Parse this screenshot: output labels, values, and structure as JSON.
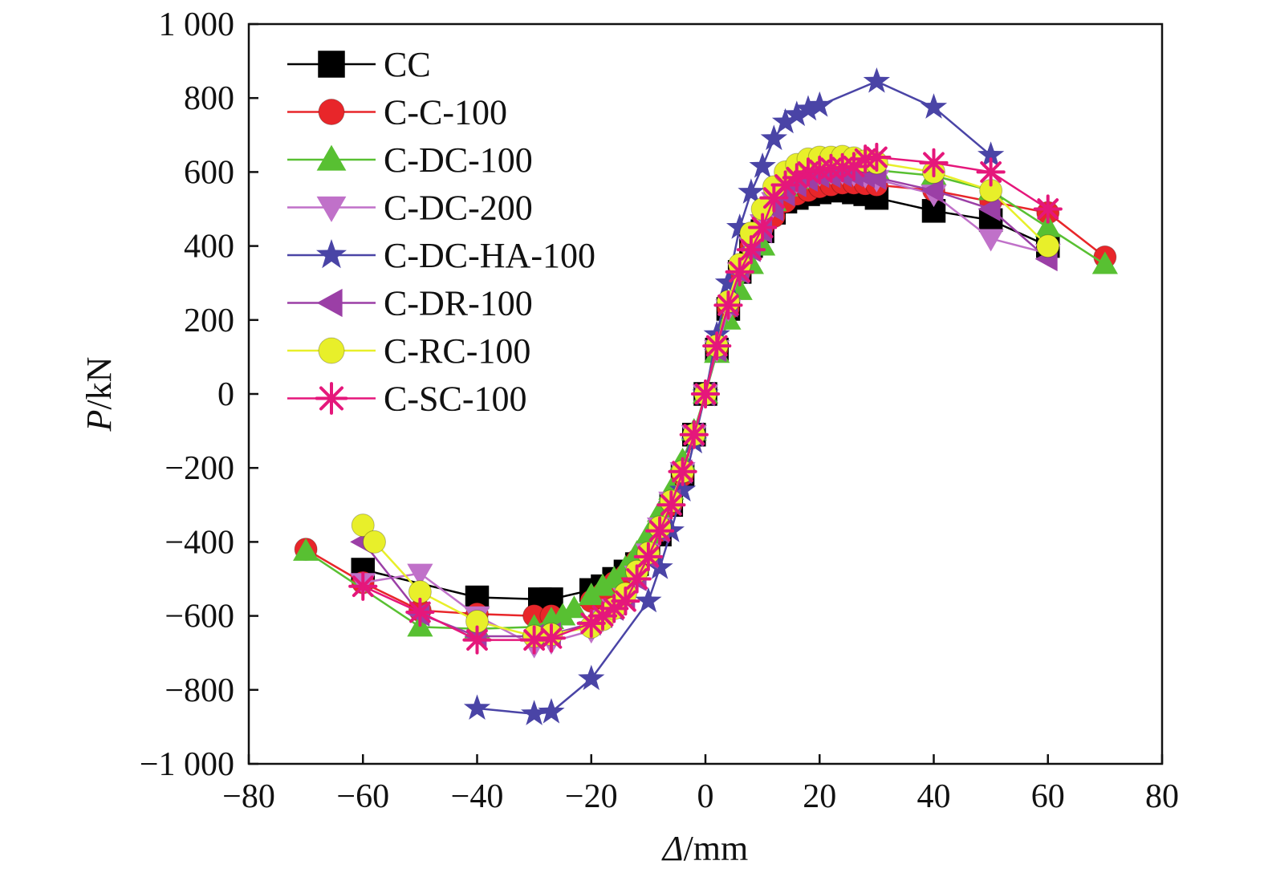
{
  "chart_data": {
    "type": "line",
    "xlabel_symbol": "Δ",
    "xlabel_unit": "/mm",
    "ylabel_symbol": "P",
    "ylabel_unit": "/kN",
    "xlim": [
      -80,
      80
    ],
    "ylim": [
      -1000,
      1000
    ],
    "x_ticks": [
      {
        "value": -80,
        "label": "−80"
      },
      {
        "value": -60,
        "label": "−60"
      },
      {
        "value": -40,
        "label": "−40"
      },
      {
        "value": -20,
        "label": "−20"
      },
      {
        "value": 0,
        "label": "0"
      },
      {
        "value": 20,
        "label": "20"
      },
      {
        "value": 40,
        "label": "40"
      },
      {
        "value": 60,
        "label": "60"
      },
      {
        "value": 80,
        "label": "80"
      }
    ],
    "y_ticks": [
      {
        "value": 1000,
        "label": "1 000"
      },
      {
        "value": 800,
        "label": "800"
      },
      {
        "value": 600,
        "label": "600"
      },
      {
        "value": 400,
        "label": "400"
      },
      {
        "value": 200,
        "label": "200"
      },
      {
        "value": 0,
        "label": "0"
      },
      {
        "value": -200,
        "label": "−200"
      },
      {
        "value": -400,
        "label": "−400"
      },
      {
        "value": -600,
        "label": "−600"
      },
      {
        "value": -800,
        "label": "−800"
      },
      {
        "value": -1000,
        "label": "−1 000"
      }
    ],
    "grid": false,
    "legend_position": "top-left",
    "series": [
      {
        "name": "CC",
        "color": "#000000",
        "marker": "square",
        "points": [
          [
            -60,
            -475
          ],
          [
            -40,
            -550
          ],
          [
            -29,
            -555
          ],
          [
            -27,
            -555
          ],
          [
            -20,
            -530
          ],
          [
            -18,
            -520
          ],
          [
            -16,
            -500
          ],
          [
            -14,
            -480
          ],
          [
            -12,
            -460
          ],
          [
            -10,
            -430
          ],
          [
            -8,
            -380
          ],
          [
            -6,
            -300
          ],
          [
            -4,
            -220
          ],
          [
            -2,
            -110
          ],
          [
            0,
            0
          ],
          [
            2,
            120
          ],
          [
            4,
            230
          ],
          [
            6,
            330
          ],
          [
            8,
            400
          ],
          [
            10,
            440
          ],
          [
            12,
            490
          ],
          [
            14,
            520
          ],
          [
            16,
            530
          ],
          [
            18,
            540
          ],
          [
            20,
            545
          ],
          [
            22,
            550
          ],
          [
            24,
            550
          ],
          [
            26,
            545
          ],
          [
            28,
            540
          ],
          [
            30,
            530
          ],
          [
            40,
            495
          ],
          [
            50,
            470
          ],
          [
            60,
            400
          ]
        ]
      },
      {
        "name": "C-C-100",
        "color": "#e8262a",
        "marker": "circle",
        "points": [
          [
            -70,
            -420
          ],
          [
            -60,
            -510
          ],
          [
            -50,
            -585
          ],
          [
            -40,
            -595
          ],
          [
            -30,
            -600
          ],
          [
            -27,
            -600
          ],
          [
            -20,
            -560
          ],
          [
            -18,
            -540
          ],
          [
            -16,
            -510
          ],
          [
            -14,
            -490
          ],
          [
            -12,
            -450
          ],
          [
            -10,
            -420
          ],
          [
            -8,
            -370
          ],
          [
            -6,
            -300
          ],
          [
            -4,
            -220
          ],
          [
            -2,
            -110
          ],
          [
            0,
            0
          ],
          [
            2,
            120
          ],
          [
            4,
            230
          ],
          [
            6,
            330
          ],
          [
            8,
            400
          ],
          [
            10,
            450
          ],
          [
            12,
            480
          ],
          [
            14,
            520
          ],
          [
            16,
            540
          ],
          [
            18,
            550
          ],
          [
            20,
            560
          ],
          [
            22,
            565
          ],
          [
            24,
            570
          ],
          [
            26,
            570
          ],
          [
            28,
            568
          ],
          [
            30,
            565
          ],
          [
            40,
            550
          ],
          [
            50,
            520
          ],
          [
            60,
            490
          ],
          [
            70,
            370
          ]
        ]
      },
      {
        "name": "C-DC-100",
        "color": "#58c032",
        "marker": "triangle-up",
        "points": [
          [
            -70,
            -425
          ],
          [
            -50,
            -630
          ],
          [
            -40,
            -635
          ],
          [
            -30,
            -630
          ],
          [
            -27,
            -610
          ],
          [
            -25,
            -600
          ],
          [
            -23,
            -580
          ],
          [
            -20,
            -545
          ],
          [
            -18,
            -520
          ],
          [
            -16,
            -500
          ],
          [
            -14,
            -470
          ],
          [
            -12,
            -430
          ],
          [
            -10,
            -380
          ],
          [
            -8,
            -320
          ],
          [
            -6,
            -260
          ],
          [
            -4,
            -180
          ],
          [
            -2,
            -100
          ],
          [
            0,
            0
          ],
          [
            2,
            110
          ],
          [
            4,
            200
          ],
          [
            6,
            280
          ],
          [
            8,
            350
          ],
          [
            10,
            400
          ],
          [
            12,
            520
          ],
          [
            14,
            560
          ],
          [
            16,
            580
          ],
          [
            18,
            590
          ],
          [
            20,
            595
          ],
          [
            22,
            600
          ],
          [
            24,
            605
          ],
          [
            26,
            605
          ],
          [
            28,
            605
          ],
          [
            30,
            605
          ],
          [
            40,
            590
          ],
          [
            50,
            550
          ],
          [
            60,
            450
          ],
          [
            70,
            350
          ]
        ]
      },
      {
        "name": "C-DC-200",
        "color": "#c071c9",
        "marker": "triangle-down",
        "points": [
          [
            -60,
            -510
          ],
          [
            -50,
            -485
          ],
          [
            -40,
            -600
          ],
          [
            -30,
            -680
          ],
          [
            -27,
            -670
          ],
          [
            -20,
            -640
          ],
          [
            -18,
            -610
          ],
          [
            -16,
            -580
          ],
          [
            -14,
            -550
          ],
          [
            -12,
            -490
          ],
          [
            -10,
            -430
          ],
          [
            -8,
            -360
          ],
          [
            -6,
            -290
          ],
          [
            -4,
            -210
          ],
          [
            -2,
            -110
          ],
          [
            0,
            0
          ],
          [
            2,
            120
          ],
          [
            4,
            230
          ],
          [
            6,
            330
          ],
          [
            8,
            400
          ],
          [
            10,
            460
          ],
          [
            12,
            520
          ],
          [
            14,
            560
          ],
          [
            16,
            575
          ],
          [
            18,
            590
          ],
          [
            20,
            595
          ],
          [
            22,
            600
          ],
          [
            24,
            600
          ],
          [
            26,
            595
          ],
          [
            28,
            590
          ],
          [
            30,
            580
          ],
          [
            40,
            540
          ],
          [
            50,
            420
          ],
          [
            60,
            380
          ]
        ]
      },
      {
        "name": "C-DC-HA-100",
        "color": "#4a44a6",
        "marker": "star",
        "points": [
          [
            -40,
            -850
          ],
          [
            -30,
            -865
          ],
          [
            -27,
            -860
          ],
          [
            -20,
            -770
          ],
          [
            -10,
            -560
          ],
          [
            -8,
            -470
          ],
          [
            -6,
            -370
          ],
          [
            -4,
            -260
          ],
          [
            -2,
            -130
          ],
          [
            0,
            0
          ],
          [
            2,
            160
          ],
          [
            4,
            300
          ],
          [
            6,
            450
          ],
          [
            8,
            545
          ],
          [
            10,
            615
          ],
          [
            12,
            690
          ],
          [
            14,
            735
          ],
          [
            16,
            755
          ],
          [
            18,
            770
          ],
          [
            20,
            780
          ],
          [
            30,
            845
          ],
          [
            40,
            775
          ],
          [
            50,
            645
          ]
        ]
      },
      {
        "name": "C-DR-100",
        "color": "#9b3fa6",
        "marker": "triangle-left",
        "points": [
          [
            -60,
            -400
          ],
          [
            -50,
            -595
          ],
          [
            -40,
            -655
          ],
          [
            -30,
            -655
          ],
          [
            -27,
            -650
          ],
          [
            -20,
            -620
          ],
          [
            -18,
            -600
          ],
          [
            -16,
            -580
          ],
          [
            -14,
            -550
          ],
          [
            -12,
            -500
          ],
          [
            -10,
            -440
          ],
          [
            -8,
            -370
          ],
          [
            -6,
            -290
          ],
          [
            -4,
            -210
          ],
          [
            -2,
            -110
          ],
          [
            0,
            0
          ],
          [
            2,
            120
          ],
          [
            4,
            240
          ],
          [
            6,
            330
          ],
          [
            8,
            390
          ],
          [
            10,
            440
          ],
          [
            12,
            500
          ],
          [
            14,
            540
          ],
          [
            16,
            565
          ],
          [
            18,
            580
          ],
          [
            20,
            590
          ],
          [
            22,
            590
          ],
          [
            24,
            592
          ],
          [
            26,
            592
          ],
          [
            28,
            590
          ],
          [
            30,
            585
          ],
          [
            40,
            550
          ],
          [
            50,
            500
          ],
          [
            60,
            365
          ]
        ]
      },
      {
        "name": "C-RC-100",
        "color": "#e8ef2a",
        "marker": "circle",
        "points": [
          [
            -60,
            -355
          ],
          [
            -58,
            -400
          ],
          [
            -50,
            -535
          ],
          [
            -40,
            -615
          ],
          [
            -30,
            -655
          ],
          [
            -27,
            -650
          ],
          [
            -20,
            -630
          ],
          [
            -18,
            -610
          ],
          [
            -16,
            -580
          ],
          [
            -14,
            -540
          ],
          [
            -12,
            -480
          ],
          [
            -10,
            -430
          ],
          [
            -8,
            -360
          ],
          [
            -6,
            -290
          ],
          [
            -4,
            -210
          ],
          [
            -2,
            -110
          ],
          [
            0,
            0
          ],
          [
            2,
            130
          ],
          [
            4,
            250
          ],
          [
            6,
            350
          ],
          [
            8,
            435
          ],
          [
            10,
            500
          ],
          [
            12,
            560
          ],
          [
            14,
            600
          ],
          [
            16,
            620
          ],
          [
            18,
            635
          ],
          [
            20,
            640
          ],
          [
            22,
            640
          ],
          [
            24,
            642
          ],
          [
            26,
            638
          ],
          [
            28,
            630
          ],
          [
            30,
            625
          ],
          [
            40,
            600
          ],
          [
            50,
            550
          ],
          [
            60,
            400
          ]
        ]
      },
      {
        "name": "C-SC-100",
        "color": "#e5177b",
        "marker": "asterisk",
        "points": [
          [
            -60,
            -520
          ],
          [
            -50,
            -590
          ],
          [
            -40,
            -665
          ],
          [
            -30,
            -665
          ],
          [
            -27,
            -660
          ],
          [
            -20,
            -620
          ],
          [
            -18,
            -600
          ],
          [
            -16,
            -580
          ],
          [
            -14,
            -560
          ],
          [
            -12,
            -500
          ],
          [
            -10,
            -440
          ],
          [
            -8,
            -370
          ],
          [
            -6,
            -300
          ],
          [
            -4,
            -210
          ],
          [
            -2,
            -110
          ],
          [
            0,
            0
          ],
          [
            2,
            130
          ],
          [
            4,
            240
          ],
          [
            6,
            330
          ],
          [
            8,
            390
          ],
          [
            10,
            450
          ],
          [
            12,
            530
          ],
          [
            14,
            565
          ],
          [
            16,
            585
          ],
          [
            18,
            600
          ],
          [
            20,
            605
          ],
          [
            22,
            610
          ],
          [
            24,
            612
          ],
          [
            26,
            615
          ],
          [
            28,
            635
          ],
          [
            30,
            640
          ],
          [
            40,
            625
          ],
          [
            50,
            600
          ],
          [
            60,
            500
          ]
        ]
      }
    ]
  }
}
